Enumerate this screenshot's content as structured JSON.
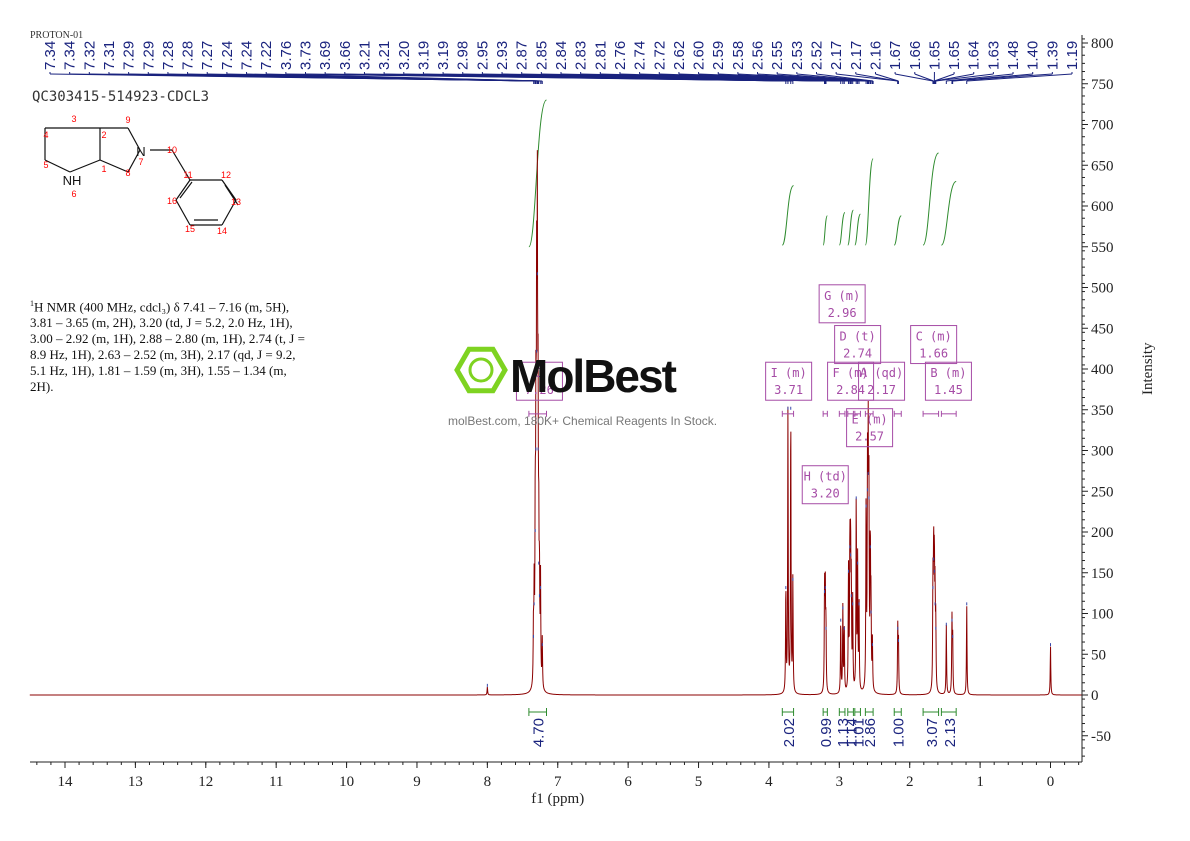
{
  "header": {
    "experiment": "PROTON-01",
    "sample_id": "QC303415-514923-CDCL3"
  },
  "watermark": {
    "brand": "MolBest",
    "tagline": "molBest.com, 180K+ Chemical Reagents In Stock."
  },
  "description": {
    "prefix": "1",
    "lines": [
      "H NMR (400 MHz, cdcl₃) δ 7.41 – 7.16 (m, 5H),",
      "3.81 – 3.65 (m, 2H), 3.20 (td, J = 5.2, 2.0 Hz, 1H),",
      "3.00 – 2.92 (m, 1H), 2.88 – 2.80 (m, 1H), 2.74 (t, J =",
      "8.9 Hz, 1H), 2.63 – 2.52 (m, 3H), 2.17 (qd, J = 9.2,",
      "5.1 Hz, 1H), 1.81 – 1.59 (m, 3H), 1.55 – 1.34 (m,",
      "2H)."
    ]
  },
  "structure": {
    "atom_labels": [
      "1",
      "2",
      "3",
      "4",
      "5",
      "NH",
      "6",
      "7",
      "N",
      "8",
      "9",
      "10",
      "11",
      "12",
      "13",
      "14",
      "15",
      "16"
    ]
  },
  "chart_data": {
    "type": "line",
    "xlabel": "f1 (ppm)",
    "ylabel": "Intensity",
    "xlim": [
      14.5,
      -0.45
    ],
    "ylim": [
      -80,
      810
    ],
    "x_ticks": [
      "14",
      "13",
      "12",
      "11",
      "10",
      "9",
      "8",
      "7",
      "6",
      "5",
      "4",
      "3",
      "2",
      "1",
      "0"
    ],
    "x_tick_values": [
      14,
      13,
      12,
      11,
      10,
      9,
      8,
      7,
      6,
      5,
      4,
      3,
      2,
      1,
      0
    ],
    "y_ticks": [
      "800",
      "750",
      "700",
      "650",
      "600",
      "550",
      "500",
      "450",
      "400",
      "350",
      "300",
      "250",
      "200",
      "150",
      "100",
      "50",
      "0",
      "-50"
    ],
    "y_tick_values": [
      800,
      750,
      700,
      650,
      600,
      550,
      500,
      450,
      400,
      350,
      300,
      250,
      200,
      150,
      100,
      50,
      0,
      -50
    ],
    "peaks": [
      {
        "x": 8.0,
        "y": 10
      },
      {
        "x": 7.345,
        "y": 70
      },
      {
        "x": 7.335,
        "y": 110
      },
      {
        "x": 7.32,
        "y": 200
      },
      {
        "x": 7.31,
        "y": 300
      },
      {
        "x": 7.3,
        "y": 420
      },
      {
        "x": 7.29,
        "y": 515
      },
      {
        "x": 7.28,
        "y": 300
      },
      {
        "x": 7.27,
        "y": 160
      },
      {
        "x": 7.26,
        "y": 120
      },
      {
        "x": 7.245,
        "y": 130
      },
      {
        "x": 7.22,
        "y": 60
      },
      {
        "x": 3.76,
        "y": 130
      },
      {
        "x": 3.73,
        "y": 350
      },
      {
        "x": 3.69,
        "y": 350
      },
      {
        "x": 3.66,
        "y": 140
      },
      {
        "x": 3.21,
        "y": 125
      },
      {
        "x": 3.2,
        "y": 130
      },
      {
        "x": 3.19,
        "y": 80
      },
      {
        "x": 2.98,
        "y": 90
      },
      {
        "x": 2.95,
        "y": 105
      },
      {
        "x": 2.93,
        "y": 80
      },
      {
        "x": 2.87,
        "y": 150
      },
      {
        "x": 2.85,
        "y": 180
      },
      {
        "x": 2.84,
        "y": 170
      },
      {
        "x": 2.83,
        "y": 120
      },
      {
        "x": 2.81,
        "y": 110
      },
      {
        "x": 2.76,
        "y": 240
      },
      {
        "x": 2.74,
        "y": 160
      },
      {
        "x": 2.72,
        "y": 110
      },
      {
        "x": 2.62,
        "y": 230
      },
      {
        "x": 2.6,
        "y": 250
      },
      {
        "x": 2.59,
        "y": 270
      },
      {
        "x": 2.58,
        "y": 240
      },
      {
        "x": 2.56,
        "y": 180
      },
      {
        "x": 2.55,
        "y": 100
      },
      {
        "x": 2.53,
        "y": 60
      },
      {
        "x": 2.17,
        "y": 80
      },
      {
        "x": 2.16,
        "y": 65
      },
      {
        "x": 1.67,
        "y": 130
      },
      {
        "x": 1.66,
        "y": 165
      },
      {
        "x": 1.65,
        "y": 150
      },
      {
        "x": 1.64,
        "y": 110
      },
      {
        "x": 1.63,
        "y": 80
      },
      {
        "x": 1.48,
        "y": 85
      },
      {
        "x": 1.4,
        "y": 90
      },
      {
        "x": 1.39,
        "y": 70
      },
      {
        "x": 1.19,
        "y": 110
      },
      {
        "x": 0.0,
        "y": 60
      }
    ],
    "peak_labels": [
      "7.34",
      "7.34",
      "7.32",
      "7.31",
      "7.29",
      "7.29",
      "7.28",
      "7.28",
      "7.27",
      "7.24",
      "7.24",
      "7.22",
      "3.76",
      "3.73",
      "3.69",
      "3.66",
      "3.21",
      "3.21",
      "3.20",
      "3.19",
      "3.19",
      "2.98",
      "2.95",
      "2.93",
      "2.87",
      "2.85",
      "2.84",
      "2.83",
      "2.81",
      "2.76",
      "2.74",
      "2.72",
      "2.62",
      "2.60",
      "2.59",
      "2.58",
      "2.56",
      "2.55",
      "2.53",
      "2.52",
      "2.17",
      "2.17",
      "2.16",
      "1.67",
      "1.66",
      "1.65",
      "1.65",
      "1.64",
      "1.63",
      "1.48",
      "1.40",
      "1.39",
      "1.19"
    ],
    "peak_label_anchor_ppm": 7.3,
    "peak_label_anchor_far_ppm": 2.55,
    "integrals": [
      {
        "from": 7.41,
        "to": 7.16,
        "value": "4.70",
        "curve_top": 730,
        "curve_bottom": 550
      },
      {
        "from": 3.81,
        "to": 3.65,
        "value": "2.02",
        "curve_top": 625,
        "curve_bottom": 552
      },
      {
        "from": 3.23,
        "to": 3.17,
        "value": "0.99",
        "curve_top": 588,
        "curve_bottom": 552
      },
      {
        "from": 3.0,
        "to": 2.92,
        "value": "1.13",
        "curve_top": 592,
        "curve_bottom": 552
      },
      {
        "from": 2.88,
        "to": 2.8,
        "value": "1.14",
        "curve_top": 595,
        "curve_bottom": 552
      },
      {
        "from": 2.78,
        "to": 2.7,
        "value": "1.01",
        "curve_top": 590,
        "curve_bottom": 552
      },
      {
        "from": 2.63,
        "to": 2.52,
        "value": "2.86",
        "curve_top": 658,
        "curve_bottom": 552
      },
      {
        "from": 2.22,
        "to": 2.12,
        "value": "1.00",
        "curve_top": 588,
        "curve_bottom": 552
      },
      {
        "from": 1.81,
        "to": 1.59,
        "value": "3.07",
        "curve_top": 665,
        "curve_bottom": 552
      },
      {
        "from": 1.55,
        "to": 1.34,
        "value": "2.13",
        "curve_top": 630,
        "curve_bottom": 552
      }
    ],
    "multiplets": [
      {
        "id": "J",
        "mult": "",
        "shift": "7.26",
        "box_ppm": 7.26,
        "box_y": 385
      },
      {
        "id": "I",
        "mult": "(m)",
        "shift": "3.71",
        "box_ppm": 3.72,
        "box_y": 385
      },
      {
        "id": "G",
        "mult": "(m)",
        "shift": "2.96",
        "box_ppm": 2.96,
        "box_y": 480
      },
      {
        "id": "D",
        "mult": "(t)",
        "shift": "2.74",
        "box_ppm": 2.74,
        "box_y": 430
      },
      {
        "id": "C",
        "mult": "(m)",
        "shift": "1.66",
        "box_ppm": 1.66,
        "box_y": 430
      },
      {
        "id": "F",
        "mult": "(m)",
        "shift": "2.84",
        "box_ppm": 2.84,
        "box_y": 385
      },
      {
        "id": "A",
        "mult": "(qd)",
        "shift": "2.17",
        "box_ppm": 2.4,
        "box_y": 385
      },
      {
        "id": "B",
        "mult": "(m)",
        "shift": "1.45",
        "box_ppm": 1.45,
        "box_y": 385
      },
      {
        "id": "E",
        "mult": "(m)",
        "shift": "2.57",
        "box_ppm": 2.57,
        "box_y": 328
      },
      {
        "id": "H",
        "mult": "(td)",
        "shift": "3.20",
        "box_ppm": 3.2,
        "box_y": 258
      }
    ]
  },
  "colors": {
    "spectrum": "#8b0000",
    "integral": "#2e8b2e",
    "peak_labels": "#1a237e",
    "multiplet": "#a64ca6",
    "watermark": "#7ed321",
    "axis": "#222222"
  }
}
